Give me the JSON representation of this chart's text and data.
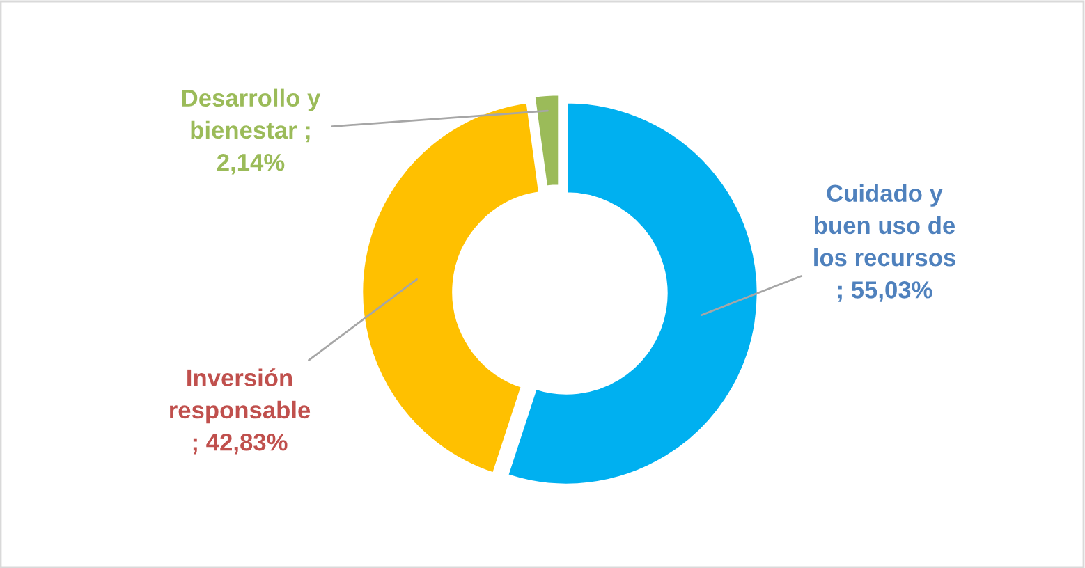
{
  "chart_data": {
    "type": "donut",
    "categories": [
      "Cuidado y\nbuen uso de\nlos recursos",
      "Inversión\nresponsable",
      "Desarrollo y\nbienestar"
    ],
    "values": [
      55.03,
      42.83,
      2.14
    ],
    "value_labels": [
      "; 55,03%",
      "; 42,83%",
      "; 2,14%"
    ],
    "colors": [
      "#00b0f0",
      "#ffc000",
      "#9bbb59"
    ],
    "legend": false
  }
}
